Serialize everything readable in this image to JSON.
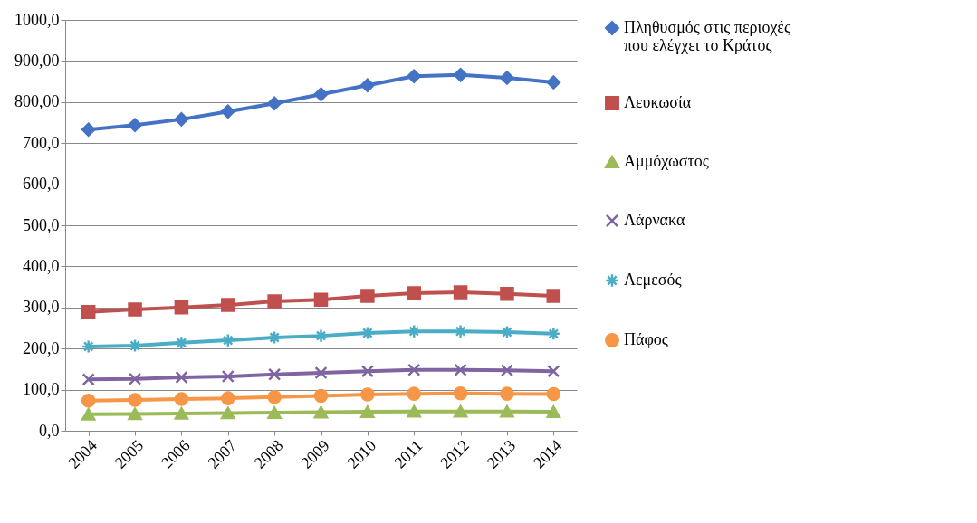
{
  "chart_data": {
    "type": "line",
    "categories": [
      "2004",
      "2005",
      "2006",
      "2007",
      "2008",
      "2009",
      "2010",
      "2011",
      "2012",
      "2013",
      "2014"
    ],
    "ylim": [
      0,
      1000
    ],
    "yticks": [
      {
        "value": 0,
        "label": "0,0"
      },
      {
        "value": 100,
        "label": "100,0"
      },
      {
        "value": 200,
        "label": "200,0"
      },
      {
        "value": 300,
        "label": "300,0"
      },
      {
        "value": 400,
        "label": "400,0"
      },
      {
        "value": 500,
        "label": "500,0"
      },
      {
        "value": 600,
        "label": "600,0"
      },
      {
        "value": 700,
        "label": "700,0"
      },
      {
        "value": 800,
        "label": "800,00"
      },
      {
        "value": 900,
        "label": "900,00"
      },
      {
        "value": 1000,
        "label": "1000,0"
      }
    ],
    "grid": "y",
    "legend": "right",
    "series": [
      {
        "name": "Πληθυσμός στις περιοχές που ελέγχει το Κράτος",
        "color": "#4472c4",
        "marker": "diamond",
        "values": [
          733,
          744,
          758,
          777,
          797,
          819,
          841,
          863,
          866,
          859,
          848
        ]
      },
      {
        "name": "Λευκωσία",
        "color": "#c0504d",
        "marker": "square",
        "values": [
          289,
          295,
          300,
          306,
          315,
          319,
          328,
          335,
          337,
          333,
          328
        ]
      },
      {
        "name": "Αμμόχωστος",
        "color": "#9bbb59",
        "marker": "triangle",
        "values": [
          40,
          41,
          42,
          43,
          44,
          45,
          46,
          47,
          47,
          47,
          46
        ]
      },
      {
        "name": "Λάρνακα",
        "color": "#8064a2",
        "marker": "cross",
        "values": [
          125,
          126,
          130,
          132,
          137,
          141,
          145,
          148,
          148,
          147,
          145
        ]
      },
      {
        "name": "Λεμεσός",
        "color": "#4bacc6",
        "marker": "cross",
        "values": [
          205,
          207,
          214,
          220,
          227,
          231,
          238,
          242,
          242,
          240,
          236
        ]
      },
      {
        "name": "Πάφος",
        "color": "#f79646",
        "marker": "circle",
        "values": [
          73,
          75,
          77,
          79,
          82,
          85,
          88,
          90,
          91,
          90,
          89
        ]
      }
    ]
  }
}
